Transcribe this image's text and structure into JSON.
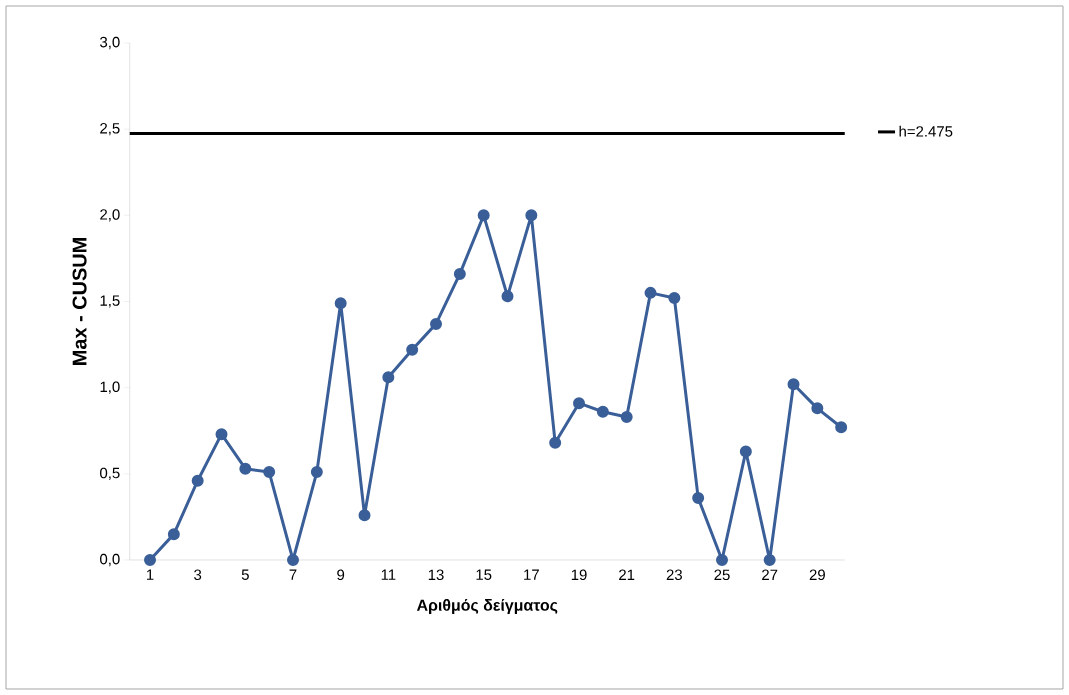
{
  "chart_data": {
    "type": "line",
    "xlabel": "Αριθμός δείγματος",
    "ylabel": "Max - CUSUM",
    "categories": [
      "1",
      null,
      "3",
      null,
      "5",
      null,
      "7",
      null,
      "9",
      null,
      "11",
      null,
      "13",
      null,
      "15",
      null,
      "17",
      null,
      "19",
      null,
      "21",
      null,
      "23",
      null,
      "25",
      null,
      "27",
      null,
      "29",
      null
    ],
    "series": [
      {
        "color": "#3a5f98",
        "values": [
          0,
          0.15,
          0.46,
          0.73,
          0.53,
          0.51,
          0,
          0.51,
          1.49,
          0.26,
          1.06,
          1.22,
          1.37,
          1.66,
          2.0,
          1.53,
          2.0,
          0.68,
          0.91,
          0.86,
          0.83,
          1.55,
          1.52,
          0.36,
          0,
          0.63,
          0,
          1.02,
          0.88,
          0.77
        ]
      }
    ],
    "ylim": [
      0,
      3
    ],
    "yticks": [
      {
        "value": 0,
        "label": "0,0"
      },
      {
        "value": 0.5,
        "label": "0,5"
      },
      {
        "value": 1,
        "label": "1,0"
      },
      {
        "value": 1.5,
        "label": "1,5"
      },
      {
        "value": 2,
        "label": "2,0"
      },
      {
        "value": 2.5,
        "label": "2,5"
      },
      {
        "value": 3,
        "label": "3,0"
      }
    ],
    "ref_lines": [
      {
        "axis": "y",
        "value": 2.475,
        "label": "h=2.475",
        "color": "#000000"
      }
    ],
    "marker": "circle",
    "legend": "right",
    "grid": false
  }
}
